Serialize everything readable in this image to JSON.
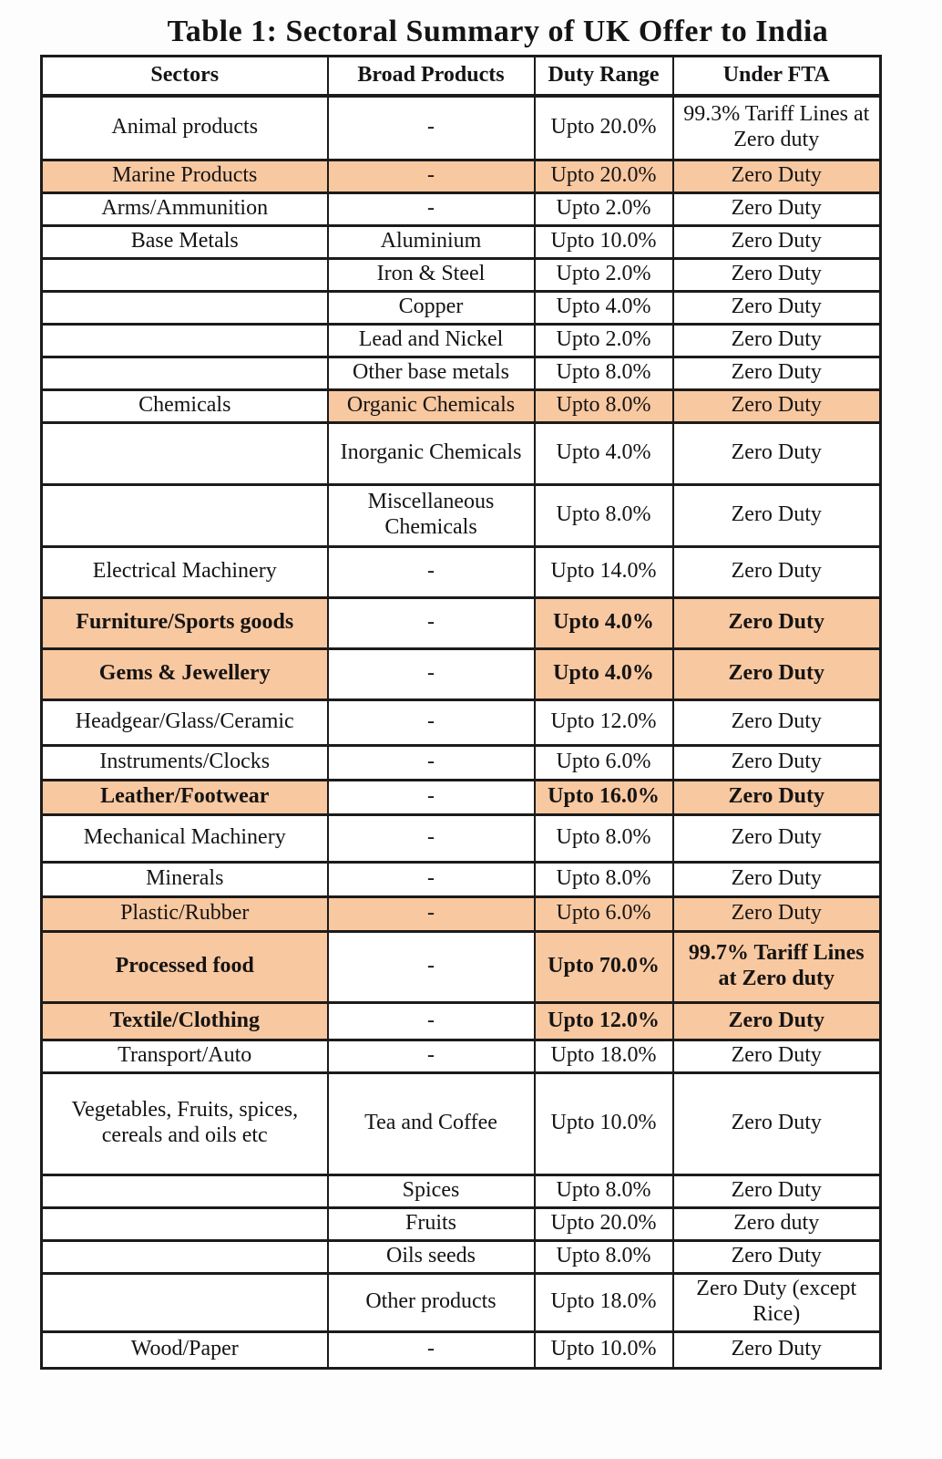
{
  "title": "Table 1: Sectoral Summary of UK Offer to India",
  "colors": {
    "highlight": "#F8C8A1",
    "border": "#1d1b1a",
    "text": "#161413"
  },
  "table": {
    "headers": [
      "Sectors",
      "Broad Products",
      "Duty Range",
      "Under FTA"
    ],
    "rows": [
      {
        "sector": "Animal products",
        "product": "-",
        "duty": "Upto 20.0%",
        "fta": "99.3% Tariff Lines at Zero duty",
        "bold": false,
        "hl": [
          false,
          false,
          false,
          false
        ]
      },
      {
        "sector": "Marine Products",
        "product": "-",
        "duty": "Upto 20.0%",
        "fta": "Zero Duty",
        "bold": false,
        "hl": [
          true,
          true,
          true,
          true
        ]
      },
      {
        "sector": "Arms/Ammunition",
        "product": "-",
        "duty": "Upto 2.0%",
        "fta": "Zero Duty",
        "bold": false,
        "hl": [
          false,
          false,
          false,
          false
        ]
      },
      {
        "sector": "Base Metals",
        "product": "Aluminium",
        "duty": "Upto 10.0%",
        "fta": "Zero Duty",
        "bold": false,
        "hl": [
          false,
          false,
          false,
          false
        ]
      },
      {
        "sector": "",
        "product": "Iron & Steel",
        "duty": "Upto 2.0%",
        "fta": "Zero Duty",
        "bold": false,
        "hl": [
          false,
          false,
          false,
          false
        ]
      },
      {
        "sector": "",
        "product": "Copper",
        "duty": "Upto 4.0%",
        "fta": "Zero Duty",
        "bold": false,
        "hl": [
          false,
          false,
          false,
          false
        ]
      },
      {
        "sector": "",
        "product": "Lead and Nickel",
        "duty": "Upto 2.0%",
        "fta": "Zero Duty",
        "bold": false,
        "hl": [
          false,
          false,
          false,
          false
        ]
      },
      {
        "sector": "",
        "product": "Other base metals",
        "duty": "Upto 8.0%",
        "fta": "Zero Duty",
        "bold": false,
        "hl": [
          false,
          false,
          false,
          false
        ]
      },
      {
        "sector": "Chemicals",
        "product": "Organic Chemicals",
        "duty": "Upto 8.0%",
        "fta": "Zero Duty",
        "bold": false,
        "hl": [
          false,
          true,
          true,
          true
        ]
      },
      {
        "sector": "",
        "product": "Inorganic Chemicals",
        "duty": "Upto 4.0%",
        "fta": "Zero Duty",
        "bold": false,
        "hl": [
          false,
          false,
          false,
          false
        ]
      },
      {
        "sector": "",
        "product": "Miscellaneous Chemicals",
        "duty": "Upto 8.0%",
        "fta": "Zero Duty",
        "bold": false,
        "hl": [
          false,
          false,
          false,
          false
        ]
      },
      {
        "sector": "Electrical Machinery",
        "product": "-",
        "duty": "Upto 14.0%",
        "fta": "Zero Duty",
        "bold": false,
        "hl": [
          false,
          false,
          false,
          false
        ]
      },
      {
        "sector": "Furniture/Sports goods",
        "product": "-",
        "duty": "Upto 4.0%",
        "fta": "Zero Duty",
        "bold": true,
        "hl": [
          true,
          false,
          true,
          true
        ]
      },
      {
        "sector": "Gems & Jewellery",
        "product": "-",
        "duty": "Upto 4.0%",
        "fta": "Zero Duty",
        "bold": true,
        "hl": [
          true,
          false,
          true,
          true
        ]
      },
      {
        "sector": "Headgear/Glass/Ceramic",
        "product": "-",
        "duty": "Upto 12.0%",
        "fta": "Zero Duty",
        "bold": false,
        "hl": [
          false,
          false,
          false,
          false
        ]
      },
      {
        "sector": "Instruments/Clocks",
        "product": "-",
        "duty": "Upto 6.0%",
        "fta": "Zero Duty",
        "bold": false,
        "hl": [
          false,
          false,
          false,
          false
        ]
      },
      {
        "sector": "Leather/Footwear",
        "product": "-",
        "duty": "Upto 16.0%",
        "fta": "Zero Duty",
        "bold": true,
        "hl": [
          true,
          false,
          true,
          true
        ]
      },
      {
        "sector": "Mechanical Machinery",
        "product": "-",
        "duty": "Upto 8.0%",
        "fta": "Zero Duty",
        "bold": false,
        "hl": [
          false,
          false,
          false,
          false
        ]
      },
      {
        "sector": "Minerals",
        "product": "-",
        "duty": "Upto 8.0%",
        "fta": "Zero Duty",
        "bold": false,
        "hl": [
          false,
          false,
          false,
          false
        ]
      },
      {
        "sector": "Plastic/Rubber",
        "product": "-",
        "duty": "Upto 6.0%",
        "fta": "Zero Duty",
        "bold": false,
        "hl": [
          true,
          true,
          true,
          true
        ]
      },
      {
        "sector": "Processed food",
        "product": "-",
        "duty": "Upto 70.0%",
        "fta": "99.7% Tariff Lines at Zero duty",
        "bold": true,
        "hl": [
          true,
          false,
          true,
          true
        ]
      },
      {
        "sector": "Textile/Clothing",
        "product": "-",
        "duty": "Upto 12.0%",
        "fta": "Zero Duty",
        "bold": true,
        "hl": [
          true,
          false,
          true,
          true
        ]
      },
      {
        "sector": "Transport/Auto",
        "product": "-",
        "duty": "Upto 18.0%",
        "fta": "Zero Duty",
        "bold": false,
        "hl": [
          false,
          false,
          false,
          false
        ]
      },
      {
        "sector": "Vegetables, Fruits, spices, cereals and oils etc",
        "product": "Tea and Coffee",
        "duty": "Upto 10.0%",
        "fta": "Zero Duty",
        "bold": false,
        "hl": [
          false,
          false,
          false,
          false
        ]
      },
      {
        "sector": "",
        "product": "Spices",
        "duty": "Upto 8.0%",
        "fta": "Zero Duty",
        "bold": false,
        "hl": [
          false,
          false,
          false,
          false
        ]
      },
      {
        "sector": "",
        "product": "Fruits",
        "duty": "Upto 20.0%",
        "fta": "Zero duty",
        "bold": false,
        "hl": [
          false,
          false,
          false,
          false
        ]
      },
      {
        "sector": "",
        "product": "Oils seeds",
        "duty": "Upto 8.0%",
        "fta": "Zero Duty",
        "bold": false,
        "hl": [
          false,
          false,
          false,
          false
        ]
      },
      {
        "sector": "",
        "product": "Other products",
        "duty": "Upto 18.0%",
        "fta": "Zero Duty (except Rice)",
        "bold": false,
        "hl": [
          false,
          false,
          false,
          false
        ]
      },
      {
        "sector": "Wood/Paper",
        "product": "-",
        "duty": "Upto 10.0%",
        "fta": "Zero Duty",
        "bold": false,
        "hl": [
          false,
          false,
          false,
          false
        ]
      }
    ]
  }
}
